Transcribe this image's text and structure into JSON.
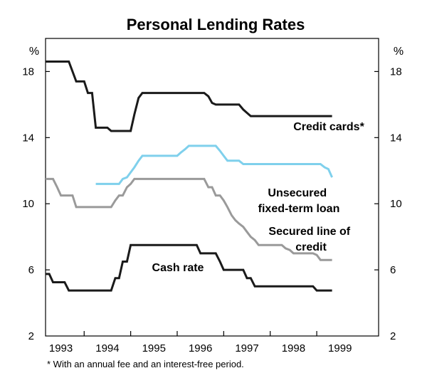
{
  "chart_data": {
    "type": "line",
    "title": "Personal Lending Rates",
    "y_unit_left": "%",
    "y_unit_right": "%",
    "ylim": [
      2,
      20
    ],
    "y_ticks": [
      2,
      6,
      10,
      14,
      18
    ],
    "xlim": [
      1992.67,
      1999.83
    ],
    "x_ticks": [
      {
        "label": "1993",
        "center": 1993.0
      },
      {
        "label": "1994",
        "center": 1994.0
      },
      {
        "label": "1995",
        "center": 1995.0
      },
      {
        "label": "1996",
        "center": 1996.0
      },
      {
        "label": "1997",
        "center": 1997.0
      },
      {
        "label": "1998",
        "center": 1998.0
      },
      {
        "label": "1999",
        "center": 1999.0
      }
    ],
    "year_boundaries": [
      1993.5,
      1994.5,
      1995.5,
      1996.5,
      1997.5,
      1998.5
    ],
    "footnote": "* With an annual fee and an interest-free period.",
    "series": [
      {
        "name": "Credit cards*",
        "color": "#1a1a1a",
        "points": [
          [
            1992.67,
            18.6
          ],
          [
            1993.17,
            18.6
          ],
          [
            1993.25,
            18.0
          ],
          [
            1993.33,
            17.4
          ],
          [
            1993.5,
            17.4
          ],
          [
            1993.58,
            16.7
          ],
          [
            1993.67,
            16.7
          ],
          [
            1993.75,
            14.6
          ],
          [
            1994.0,
            14.6
          ],
          [
            1994.08,
            14.4
          ],
          [
            1994.5,
            14.4
          ],
          [
            1994.58,
            15.4
          ],
          [
            1994.67,
            16.4
          ],
          [
            1994.75,
            16.7
          ],
          [
            1996.08,
            16.7
          ],
          [
            1996.17,
            16.5
          ],
          [
            1996.25,
            16.1
          ],
          [
            1996.33,
            16.0
          ],
          [
            1996.83,
            16.0
          ],
          [
            1996.92,
            15.7
          ],
          [
            1997.0,
            15.5
          ],
          [
            1997.08,
            15.3
          ],
          [
            1998.83,
            15.3
          ]
        ]
      },
      {
        "name": "Unsecured fixed-term loan",
        "color": "#7fd0ec",
        "points": [
          [
            1993.75,
            11.2
          ],
          [
            1994.25,
            11.2
          ],
          [
            1994.33,
            11.5
          ],
          [
            1994.42,
            11.6
          ],
          [
            1994.5,
            11.9
          ],
          [
            1994.58,
            12.2
          ],
          [
            1994.67,
            12.6
          ],
          [
            1994.75,
            12.9
          ],
          [
            1995.5,
            12.9
          ],
          [
            1995.58,
            13.1
          ],
          [
            1995.67,
            13.3
          ],
          [
            1995.75,
            13.5
          ],
          [
            1996.33,
            13.5
          ],
          [
            1996.42,
            13.2
          ],
          [
            1996.5,
            12.9
          ],
          [
            1996.58,
            12.6
          ],
          [
            1996.83,
            12.6
          ],
          [
            1996.92,
            12.4
          ],
          [
            1998.58,
            12.4
          ],
          [
            1998.67,
            12.2
          ],
          [
            1998.75,
            12.1
          ],
          [
            1998.83,
            11.6
          ]
        ]
      },
      {
        "name": "Secured line of credit",
        "color": "#9a9a9a",
        "points": [
          [
            1992.67,
            11.5
          ],
          [
            1992.83,
            11.5
          ],
          [
            1992.92,
            11.0
          ],
          [
            1993.0,
            10.5
          ],
          [
            1993.25,
            10.5
          ],
          [
            1993.33,
            9.8
          ],
          [
            1994.08,
            9.8
          ],
          [
            1994.17,
            10.2
          ],
          [
            1994.25,
            10.5
          ],
          [
            1994.33,
            10.5
          ],
          [
            1994.42,
            11.0
          ],
          [
            1994.5,
            11.2
          ],
          [
            1994.58,
            11.5
          ],
          [
            1995.5,
            11.5
          ],
          [
            1995.75,
            11.5
          ],
          [
            1996.08,
            11.5
          ],
          [
            1996.17,
            11.0
          ],
          [
            1996.25,
            11.0
          ],
          [
            1996.33,
            10.5
          ],
          [
            1996.42,
            10.5
          ],
          [
            1996.5,
            10.2
          ],
          [
            1996.58,
            9.8
          ],
          [
            1996.67,
            9.3
          ],
          [
            1996.75,
            9.0
          ],
          [
            1996.83,
            8.8
          ],
          [
            1996.92,
            8.6
          ],
          [
            1997.0,
            8.3
          ],
          [
            1997.08,
            8.0
          ],
          [
            1997.17,
            7.8
          ],
          [
            1997.25,
            7.5
          ],
          [
            1997.75,
            7.5
          ],
          [
            1997.83,
            7.3
          ],
          [
            1997.92,
            7.2
          ],
          [
            1998.0,
            7.0
          ],
          [
            1998.42,
            7.0
          ],
          [
            1998.5,
            6.9
          ],
          [
            1998.58,
            6.6
          ],
          [
            1998.83,
            6.6
          ]
        ]
      },
      {
        "name": "Cash rate",
        "color": "#1a1a1a",
        "points": [
          [
            1992.67,
            5.75
          ],
          [
            1992.75,
            5.75
          ],
          [
            1992.83,
            5.25
          ],
          [
            1993.08,
            5.25
          ],
          [
            1993.17,
            4.75
          ],
          [
            1994.08,
            4.75
          ],
          [
            1994.17,
            5.5
          ],
          [
            1994.25,
            5.5
          ],
          [
            1994.33,
            6.5
          ],
          [
            1994.42,
            6.5
          ],
          [
            1994.5,
            7.5
          ],
          [
            1995.92,
            7.5
          ],
          [
            1996.0,
            7.0
          ],
          [
            1996.33,
            7.0
          ],
          [
            1996.42,
            6.5
          ],
          [
            1996.5,
            6.0
          ],
          [
            1996.92,
            6.0
          ],
          [
            1997.0,
            5.5
          ],
          [
            1997.08,
            5.5
          ],
          [
            1997.17,
            5.0
          ],
          [
            1998.42,
            5.0
          ],
          [
            1998.5,
            4.75
          ],
          [
            1998.83,
            4.75
          ]
        ]
      }
    ],
    "series_labels": [
      {
        "lines": [
          "Credit cards*"
        ]
      },
      {
        "lines": [
          "Unsecured",
          "fixed-term loan"
        ]
      },
      {
        "lines": [
          "Secured line of",
          "credit"
        ]
      },
      {
        "lines": [
          "Cash rate"
        ]
      }
    ]
  }
}
